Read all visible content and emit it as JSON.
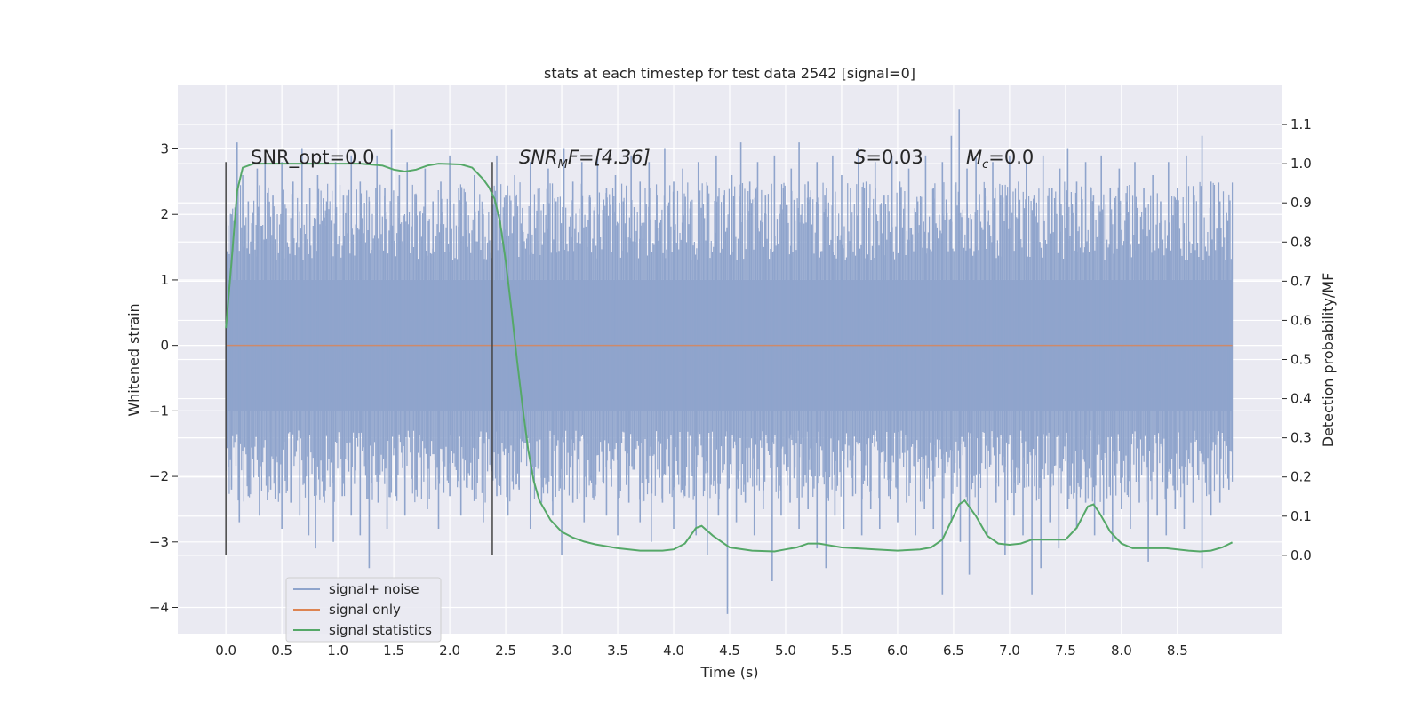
{
  "chart_data": {
    "type": "line",
    "title": "stats at each timestep for test data 2542 [signal=0]",
    "xlabel": "Time (s)",
    "ylabel": "Whitened strain",
    "y2label": "Detection probability/MF",
    "xlim": [
      -0.43,
      9.43
    ],
    "ylim": [
      -4.4,
      3.97
    ],
    "y2lim": [
      -0.2,
      1.2
    ],
    "xticks": [
      "0.0",
      "0.5",
      "1.0",
      "1.5",
      "2.0",
      "2.5",
      "3.0",
      "3.5",
      "4.0",
      "4.5",
      "5.0",
      "5.5",
      "6.0",
      "6.5",
      "7.0",
      "7.5",
      "8.0",
      "8.5"
    ],
    "yticks": [
      "3",
      "2",
      "1",
      "0",
      "−1",
      "−2",
      "−3",
      "−4"
    ],
    "y2ticks": [
      "1.1",
      "1.0",
      "0.9",
      "0.8",
      "0.7",
      "0.6",
      "0.5",
      "0.4",
      "0.3",
      "0.2",
      "0.1",
      "0.0"
    ],
    "grid": true,
    "legend_position": "lower-left",
    "colors": {
      "noise": "#8fa4cc",
      "signal": "#dd8452",
      "stats": "#55a868",
      "vline": "#444444",
      "background": "#eaeaf2"
    },
    "annotations": {
      "snr_opt": "SNR_opt=0.0",
      "snr_mf_a": "SNR",
      "snr_mf_sub": "M",
      "snr_mf_b": "F=[4.36]",
      "s_a": "S",
      "s_b": "=0.03",
      "mc_a": "M",
      "mc_sub": "c",
      "mc_b": "=0.0"
    },
    "vlines": [
      {
        "x": 0.0,
        "ymin": -3.2,
        "ymax": 2.8
      },
      {
        "x": 2.38,
        "ymin": -3.2,
        "ymax": 2.8
      }
    ],
    "series": [
      {
        "name": "signal+ noise",
        "axis": "left",
        "x_start": 0.0,
        "x_end": 8.99,
        "band": [
          -1.0,
          1.0
        ],
        "spikes_up": [
          [
            0.05,
            2.0
          ],
          [
            0.1,
            3.1
          ],
          [
            0.15,
            2.6
          ],
          [
            0.2,
            2.2
          ],
          [
            0.28,
            2.7
          ],
          [
            0.35,
            2.9
          ],
          [
            0.42,
            2.3
          ],
          [
            0.5,
            2.8
          ],
          [
            0.6,
            2.5
          ],
          [
            0.68,
            3.0
          ],
          [
            0.75,
            2.4
          ],
          [
            0.82,
            2.6
          ],
          [
            0.9,
            2.2
          ],
          [
            0.98,
            2.8
          ],
          [
            1.05,
            2.3
          ],
          [
            1.12,
            2.9
          ],
          [
            1.2,
            2.5
          ],
          [
            1.28,
            2.2
          ],
          [
            1.35,
            2.9
          ],
          [
            1.42,
            2.4
          ],
          [
            1.48,
            3.3
          ],
          [
            1.55,
            2.6
          ],
          [
            1.62,
            2.8
          ],
          [
            1.7,
            2.3
          ],
          [
            1.78,
            2.7
          ],
          [
            1.85,
            2.2
          ],
          [
            1.92,
            2.5
          ],
          [
            2.0,
            2.9
          ],
          [
            2.08,
            2.4
          ],
          [
            2.15,
            2.2
          ],
          [
            2.22,
            2.6
          ],
          [
            2.3,
            2.0
          ],
          [
            2.42,
            2.9
          ],
          [
            2.5,
            2.3
          ],
          [
            2.58,
            2.6
          ],
          [
            2.65,
            2.1
          ],
          [
            2.72,
            2.8
          ],
          [
            2.8,
            2.4
          ],
          [
            2.88,
            2.7
          ],
          [
            2.95,
            2.2
          ],
          [
            3.02,
            3.0
          ],
          [
            3.1,
            2.5
          ],
          [
            3.18,
            2.8
          ],
          [
            3.25,
            2.3
          ],
          [
            3.32,
            2.9
          ],
          [
            3.4,
            2.4
          ],
          [
            3.48,
            2.6
          ],
          [
            3.55,
            2.2
          ],
          [
            3.62,
            2.9
          ],
          [
            3.7,
            2.5
          ],
          [
            3.78,
            2.8
          ],
          [
            3.85,
            2.3
          ],
          [
            3.92,
            3.0
          ],
          [
            4.0,
            2.5
          ],
          [
            4.08,
            2.7
          ],
          [
            4.15,
            2.2
          ],
          [
            4.22,
            2.8
          ],
          [
            4.3,
            2.4
          ],
          [
            4.38,
            2.9
          ],
          [
            4.45,
            2.3
          ],
          [
            4.52,
            2.6
          ],
          [
            4.6,
            3.1
          ],
          [
            4.68,
            2.5
          ],
          [
            4.75,
            2.8
          ],
          [
            4.82,
            2.3
          ],
          [
            4.9,
            2.9
          ],
          [
            4.98,
            2.4
          ],
          [
            5.05,
            2.7
          ],
          [
            5.12,
            3.1
          ],
          [
            5.2,
            2.5
          ],
          [
            5.28,
            2.8
          ],
          [
            5.35,
            2.3
          ],
          [
            5.42,
            2.9
          ],
          [
            5.5,
            2.6
          ],
          [
            5.58,
            2.4
          ],
          [
            5.65,
            3.0
          ],
          [
            5.72,
            2.5
          ],
          [
            5.8,
            2.8
          ],
          [
            5.88,
            2.3
          ],
          [
            5.95,
            2.9
          ],
          [
            6.02,
            2.5
          ],
          [
            6.1,
            2.7
          ],
          [
            6.18,
            2.2
          ],
          [
            6.25,
            2.9
          ],
          [
            6.32,
            2.4
          ],
          [
            6.4,
            2.8
          ],
          [
            6.48,
            3.2
          ],
          [
            6.55,
            3.6
          ],
          [
            6.62,
            2.7
          ],
          [
            6.7,
            2.9
          ],
          [
            6.78,
            2.4
          ],
          [
            6.85,
            2.8
          ],
          [
            6.92,
            2.3
          ],
          [
            7.0,
            2.9
          ],
          [
            7.08,
            2.5
          ],
          [
            7.15,
            2.8
          ],
          [
            7.22,
            2.3
          ],
          [
            7.3,
            2.9
          ],
          [
            7.38,
            2.4
          ],
          [
            7.45,
            2.7
          ],
          [
            7.52,
            3.0
          ],
          [
            7.6,
            2.5
          ],
          [
            7.68,
            2.8
          ],
          [
            7.75,
            2.3
          ],
          [
            7.82,
            2.9
          ],
          [
            7.9,
            2.4
          ],
          [
            7.98,
            2.7
          ],
          [
            8.05,
            2.2
          ],
          [
            8.12,
            2.8
          ],
          [
            8.2,
            2.4
          ],
          [
            8.28,
            2.6
          ],
          [
            8.35,
            2.2
          ],
          [
            8.42,
            2.8
          ],
          [
            8.5,
            2.4
          ],
          [
            8.58,
            2.9
          ],
          [
            8.65,
            2.3
          ],
          [
            8.72,
            3.2
          ],
          [
            8.8,
            2.5
          ],
          [
            8.88,
            2.2
          ],
          [
            8.95,
            1.9
          ]
        ],
        "spikes_down": [
          [
            0.05,
            -2.2
          ],
          [
            0.12,
            -2.7
          ],
          [
            0.2,
            -2.3
          ],
          [
            0.3,
            -2.6
          ],
          [
            0.4,
            -2.2
          ],
          [
            0.5,
            -2.8
          ],
          [
            0.58,
            -2.4
          ],
          [
            0.66,
            -2.6
          ],
          [
            0.74,
            -2.9
          ],
          [
            0.8,
            -3.1
          ],
          [
            0.88,
            -2.4
          ],
          [
            0.96,
            -3.0
          ],
          [
            1.04,
            -2.3
          ],
          [
            1.12,
            -2.6
          ],
          [
            1.2,
            -2.9
          ],
          [
            1.28,
            -3.4
          ],
          [
            1.36,
            -2.4
          ],
          [
            1.44,
            -2.8
          ],
          [
            1.52,
            -2.3
          ],
          [
            1.6,
            -2.6
          ],
          [
            1.7,
            -2.2
          ],
          [
            1.8,
            -2.5
          ],
          [
            1.9,
            -2.8
          ],
          [
            2.0,
            -2.3
          ],
          [
            2.1,
            -2.6
          ],
          [
            2.2,
            -2.2
          ],
          [
            2.3,
            -2.7
          ],
          [
            2.42,
            -2.3
          ],
          [
            2.52,
            -2.6
          ],
          [
            2.62,
            -2.2
          ],
          [
            2.72,
            -2.8
          ],
          [
            2.82,
            -2.4
          ],
          [
            2.92,
            -2.6
          ],
          [
            3.0,
            -3.2
          ],
          [
            3.1,
            -2.4
          ],
          [
            3.2,
            -2.7
          ],
          [
            3.3,
            -2.3
          ],
          [
            3.4,
            -2.6
          ],
          [
            3.5,
            -2.9
          ],
          [
            3.6,
            -2.4
          ],
          [
            3.7,
            -2.7
          ],
          [
            3.8,
            -3.0
          ],
          [
            3.9,
            -2.4
          ],
          [
            4.0,
            -2.8
          ],
          [
            4.1,
            -2.3
          ],
          [
            4.2,
            -2.9
          ],
          [
            4.3,
            -3.2
          ],
          [
            4.4,
            -2.6
          ],
          [
            4.48,
            -4.1
          ],
          [
            4.56,
            -2.7
          ],
          [
            4.64,
            -2.4
          ],
          [
            4.72,
            -2.9
          ],
          [
            4.8,
            -2.5
          ],
          [
            4.88,
            -3.6
          ],
          [
            4.96,
            -2.6
          ],
          [
            5.04,
            -2.4
          ],
          [
            5.12,
            -2.8
          ],
          [
            5.2,
            -2.5
          ],
          [
            5.28,
            -3.1
          ],
          [
            5.36,
            -3.4
          ],
          [
            5.44,
            -2.6
          ],
          [
            5.52,
            -2.8
          ],
          [
            5.6,
            -2.3
          ],
          [
            5.68,
            -2.9
          ],
          [
            5.76,
            -2.5
          ],
          [
            5.84,
            -2.8
          ],
          [
            5.92,
            -2.3
          ],
          [
            6.0,
            -2.7
          ],
          [
            6.08,
            -2.4
          ],
          [
            6.16,
            -2.9
          ],
          [
            6.24,
            -2.5
          ],
          [
            6.32,
            -2.8
          ],
          [
            6.4,
            -3.8
          ],
          [
            6.48,
            -2.7
          ],
          [
            6.56,
            -3.0
          ],
          [
            6.64,
            -3.5
          ],
          [
            6.72,
            -2.6
          ],
          [
            6.8,
            -2.9
          ],
          [
            6.88,
            -2.4
          ],
          [
            6.96,
            -3.2
          ],
          [
            7.04,
            -2.6
          ],
          [
            7.12,
            -2.9
          ],
          [
            7.2,
            -3.8
          ],
          [
            7.28,
            -3.4
          ],
          [
            7.36,
            -2.7
          ],
          [
            7.44,
            -3.1
          ],
          [
            7.52,
            -2.5
          ],
          [
            7.6,
            -2.8
          ],
          [
            7.68,
            -2.4
          ],
          [
            7.76,
            -2.9
          ],
          [
            7.84,
            -2.6
          ],
          [
            7.92,
            -3.0
          ],
          [
            8.0,
            -2.5
          ],
          [
            8.08,
            -2.8
          ],
          [
            8.16,
            -2.4
          ],
          [
            8.24,
            -3.3
          ],
          [
            8.32,
            -2.6
          ],
          [
            8.4,
            -2.9
          ],
          [
            8.48,
            -2.5
          ],
          [
            8.56,
            -2.8
          ],
          [
            8.64,
            -2.4
          ],
          [
            8.72,
            -3.4
          ],
          [
            8.8,
            -2.6
          ],
          [
            8.88,
            -2.4
          ],
          [
            8.96,
            -2.2
          ]
        ]
      },
      {
        "name": "signal only",
        "axis": "left",
        "x": [
          0.0,
          8.99
        ],
        "y": [
          0.0,
          0.0
        ]
      },
      {
        "name": "signal statistics",
        "axis": "right",
        "x": [
          0.0,
          0.05,
          0.1,
          0.15,
          0.25,
          0.4,
          0.6,
          0.9,
          1.2,
          1.4,
          1.5,
          1.6,
          1.7,
          1.8,
          1.9,
          2.1,
          2.2,
          2.25,
          2.3,
          2.35,
          2.4,
          2.45,
          2.5,
          2.55,
          2.6,
          2.65,
          2.7,
          2.75,
          2.8,
          2.9,
          3.0,
          3.1,
          3.2,
          3.3,
          3.5,
          3.7,
          3.9,
          4.0,
          4.1,
          4.2,
          4.25,
          4.35,
          4.5,
          4.7,
          4.9,
          5.0,
          5.1,
          5.2,
          5.3,
          5.5,
          5.8,
          6.0,
          6.2,
          6.3,
          6.4,
          6.5,
          6.55,
          6.6,
          6.7,
          6.8,
          6.9,
          7.0,
          7.1,
          7.2,
          7.3,
          7.5,
          7.6,
          7.7,
          7.75,
          7.8,
          7.9,
          8.0,
          8.1,
          8.2,
          8.4,
          8.6,
          8.7,
          8.8,
          8.9,
          8.99
        ],
        "y": [
          0.58,
          0.75,
          0.93,
          0.99,
          1.0,
          1.0,
          1.0,
          1.0,
          1.0,
          0.995,
          0.985,
          0.98,
          0.985,
          0.995,
          1.0,
          0.998,
          0.99,
          0.975,
          0.96,
          0.94,
          0.91,
          0.85,
          0.75,
          0.63,
          0.5,
          0.38,
          0.27,
          0.19,
          0.14,
          0.09,
          0.06,
          0.045,
          0.035,
          0.028,
          0.018,
          0.012,
          0.012,
          0.015,
          0.03,
          0.07,
          0.075,
          0.05,
          0.02,
          0.012,
          0.01,
          0.015,
          0.02,
          0.03,
          0.03,
          0.02,
          0.015,
          0.012,
          0.015,
          0.02,
          0.04,
          0.1,
          0.13,
          0.14,
          0.1,
          0.05,
          0.03,
          0.027,
          0.03,
          0.04,
          0.04,
          0.04,
          0.07,
          0.125,
          0.13,
          0.11,
          0.06,
          0.03,
          0.018,
          0.018,
          0.018,
          0.012,
          0.01,
          0.012,
          0.02,
          0.033
        ]
      }
    ]
  }
}
